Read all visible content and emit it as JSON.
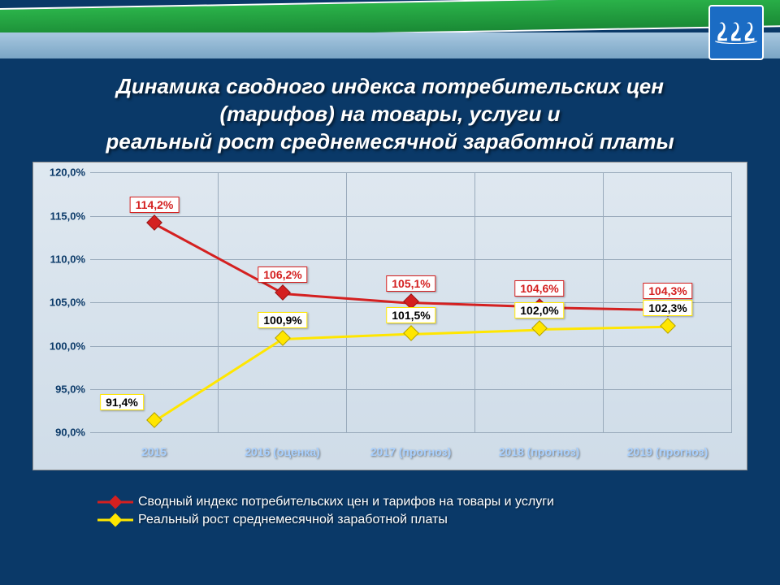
{
  "title_lines": [
    "Динамика сводного индекса потребительских цен",
    "(тарифов) на товары, услуги и",
    "реальный рост среднемесячной заработной платы"
  ],
  "title_fontsize": 26,
  "title_color": "#ffffff",
  "chart": {
    "type": "line",
    "background": "#dfe8f0",
    "grid_color": "#99aabb",
    "categories": [
      "2015",
      "2016 (оценка)",
      "2017 (прогноз)",
      "2018 (прогноз)",
      "2019 (прогноз)"
    ],
    "xlabel_color": "#a8d0ff",
    "xlabel_fontsize": 14,
    "ymin": 90.0,
    "ymax": 120.0,
    "ytick_step": 5.0,
    "ytick_labels": [
      "90,0%",
      "95,0%",
      "100,0%",
      "105,0%",
      "110,0%",
      "115,0%",
      "120,0%"
    ],
    "ytick_color": "#0a3968",
    "ytick_fontsize": 13,
    "series": [
      {
        "name": "price_index",
        "label": "Сводный индекс потребительских цен и тарифов на товары и услуги",
        "color": "#d42020",
        "text_color": "#d42020",
        "line_width": 3,
        "marker": "diamond",
        "marker_size": 14,
        "values": [
          114.2,
          106.2,
          105.1,
          104.6,
          104.3
        ],
        "value_labels": [
          "114,2%",
          "106,2%",
          "105,1%",
          "104,6%",
          "104,3%"
        ],
        "label_offset_y": -22
      },
      {
        "name": "wage_growth",
        "label": "Реальный рост среднемесячной заработной платы",
        "color": "#ffe600",
        "text_color": "#000000",
        "line_width": 3,
        "marker": "diamond",
        "marker_size": 14,
        "values": [
          91.4,
          100.9,
          101.5,
          102.0,
          102.3
        ],
        "value_labels": [
          "91,4%",
          "100,9%",
          "101,5%",
          "102,0%",
          "102,3%"
        ],
        "label_offset_y": -22
      }
    ],
    "label_overrides": {
      "wage_growth_0": {
        "dx": -40,
        "dy": 0
      }
    }
  },
  "header": {
    "green": "#2bb34a",
    "sky": "#a8c8e0",
    "crest_bg": "#1b6cc4"
  },
  "page_background": "#0a3968"
}
